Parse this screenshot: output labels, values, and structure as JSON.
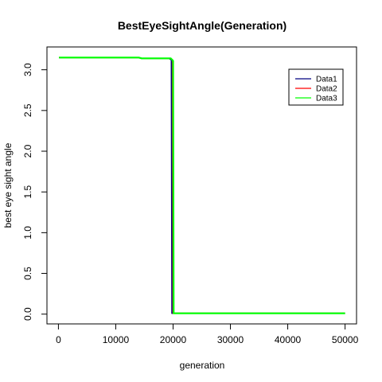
{
  "chart_data": {
    "type": "line",
    "title": "BestEyeSightAngle(Generation)",
    "xlabel": "generation",
    "ylabel": "best eye sight angle",
    "xlim": [
      -2000,
      52000
    ],
    "ylim": [
      -0.12,
      3.28
    ],
    "x_ticks": [
      0,
      10000,
      20000,
      30000,
      40000,
      50000
    ],
    "x_tick_labels": [
      "0",
      "10000",
      "20000",
      "30000",
      "40000",
      "50000"
    ],
    "y_ticks": [
      0.0,
      0.5,
      1.0,
      1.5,
      2.0,
      2.5,
      3.0
    ],
    "y_tick_labels": [
      "0.0",
      "0.5",
      "1.0",
      "1.5",
      "2.0",
      "2.5",
      "3.0"
    ],
    "grid": false,
    "legend_position": "top-right",
    "series": [
      {
        "name": "Data1",
        "color": "#000080",
        "x": [
          100,
          14000,
          14500,
          19300,
          19700,
          19800,
          20000,
          20100,
          50000
        ],
        "y": [
          3.15,
          3.15,
          3.14,
          3.14,
          3.12,
          0.01,
          0.01,
          0.01,
          0.01
        ]
      },
      {
        "name": "Data2",
        "color": "#ff0000",
        "x": [
          100,
          14000,
          14500,
          19500,
          19900,
          20000,
          20200,
          50000
        ],
        "y": [
          3.15,
          3.15,
          3.14,
          3.14,
          3.12,
          0.01,
          0.01,
          0.01
        ]
      },
      {
        "name": "Data3",
        "color": "#00ff00",
        "x": [
          100,
          14000,
          14500,
          19600,
          20000,
          20100,
          20300,
          50000
        ],
        "y": [
          3.15,
          3.15,
          3.14,
          3.14,
          3.11,
          0.01,
          0.01,
          0.01
        ]
      }
    ]
  }
}
